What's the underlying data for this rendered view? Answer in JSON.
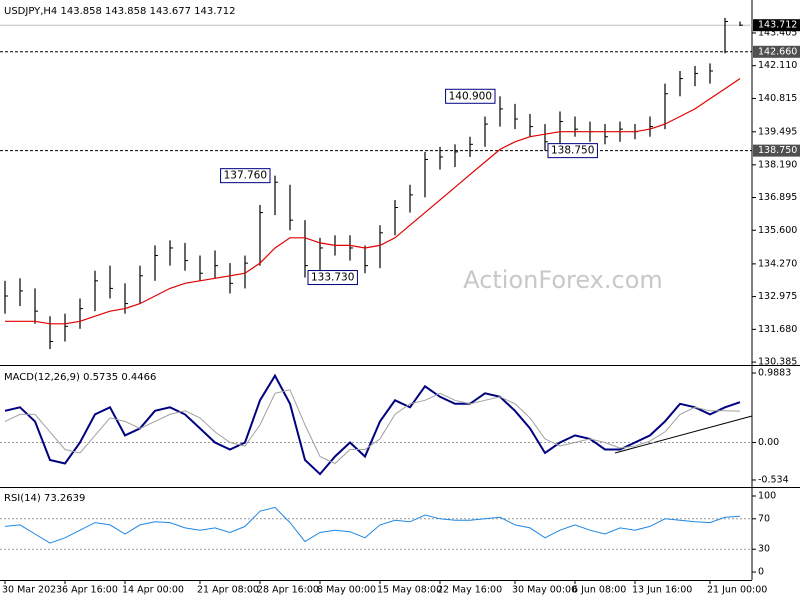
{
  "chart_data": [
    {
      "type": "ohlc",
      "title": "USDJPY,H4",
      "header_values": [
        143.858,
        143.858,
        143.677,
        143.712
      ],
      "watermark": "ActionForex.com",
      "categories": [
        "30 Mar 2023",
        null,
        null,
        null,
        "6 Apr 16:00",
        null,
        null,
        null,
        "14 Apr 00:00",
        null,
        null,
        null,
        null,
        "21 Apr 08:00",
        null,
        null,
        null,
        "28 Apr 16:00",
        null,
        null,
        null,
        "8 May 00:00",
        null,
        null,
        null,
        "15 May 08:00",
        null,
        null,
        null,
        "22 May 16:00",
        null,
        null,
        null,
        null,
        "30 May 00:00",
        null,
        null,
        null,
        "6 Jun 08:00",
        null,
        null,
        null,
        "13 Jun 16:00",
        null,
        null,
        null,
        null,
        "21 Jun 00:00",
        null,
        null
      ],
      "high": [
        133.6,
        133.7,
        133.3,
        132.2,
        132.3,
        132.9,
        134.0,
        134.2,
        133.5,
        134.2,
        135.0,
        135.2,
        135.1,
        134.6,
        134.8,
        134.3,
        134.6,
        136.6,
        137.76,
        137.4,
        136.0,
        135.3,
        135.4,
        135.4,
        135.0,
        135.8,
        136.8,
        137.4,
        138.7,
        138.9,
        139.0,
        139.3,
        140.1,
        140.9,
        140.6,
        140.2,
        139.8,
        140.3,
        140.1,
        139.9,
        139.8,
        139.9,
        139.8,
        140.1,
        141.4,
        141.9,
        142.1,
        142.2,
        144.0,
        143.858
      ],
      "low": [
        132.3,
        132.6,
        131.9,
        130.9,
        131.2,
        131.7,
        132.4,
        132.9,
        132.3,
        132.7,
        133.6,
        134.2,
        134.0,
        133.6,
        133.7,
        133.1,
        133.3,
        134.2,
        136.2,
        135.6,
        133.73,
        134.0,
        134.6,
        134.4,
        133.9,
        134.1,
        135.4,
        136.3,
        136.9,
        138.0,
        138.1,
        138.5,
        138.9,
        139.7,
        139.6,
        139.3,
        138.75,
        139.0,
        139.3,
        139.1,
        139.0,
        139.1,
        139.2,
        139.3,
        139.6,
        140.9,
        141.3,
        141.4,
        142.6,
        143.677
      ],
      "close": [
        133.0,
        133.2,
        132.4,
        131.2,
        131.8,
        132.5,
        133.6,
        133.3,
        132.7,
        133.8,
        134.6,
        134.9,
        134.4,
        133.9,
        134.2,
        133.5,
        134.3,
        136.3,
        137.5,
        136.0,
        134.2,
        134.9,
        135.0,
        134.9,
        134.2,
        135.5,
        136.5,
        137.0,
        138.4,
        138.5,
        138.7,
        139.0,
        139.8,
        140.4,
        140.0,
        139.7,
        139.1,
        139.9,
        139.6,
        139.5,
        139.3,
        139.6,
        139.5,
        139.7,
        141.0,
        141.6,
        141.8,
        141.9,
        143.858,
        143.712
      ],
      "color": "#000000",
      "ma": {
        "color": "#e00000",
        "values": [
          132.0,
          132.0,
          132.0,
          131.9,
          131.9,
          132.0,
          132.2,
          132.4,
          132.5,
          132.7,
          133.0,
          133.3,
          133.5,
          133.6,
          133.7,
          133.8,
          133.9,
          134.3,
          134.9,
          135.3,
          135.3,
          135.1,
          135.0,
          135.0,
          134.9,
          135.0,
          135.3,
          135.8,
          136.3,
          136.8,
          137.3,
          137.8,
          138.3,
          138.8,
          139.1,
          139.3,
          139.4,
          139.5,
          139.5,
          139.5,
          139.5,
          139.5,
          139.5,
          139.6,
          139.8,
          140.1,
          140.4,
          140.8,
          141.2,
          141.6
        ]
      },
      "levels": [
        {
          "value": 142.66,
          "label": "142.660"
        },
        {
          "value": 138.75,
          "label": "138.750"
        }
      ],
      "annotations": [
        {
          "value": 137.76,
          "label": "137.760"
        },
        {
          "value": 140.9,
          "label": "140.900"
        },
        {
          "value": 133.73,
          "label": "133.730"
        },
        {
          "value": 138.75,
          "label": "138.750"
        }
      ],
      "ylim": [
        130.27,
        144.59
      ],
      "yticks": [
        143.405,
        {
          "value": 142.11,
          "label": "142.110"
        },
        140.815,
        139.495,
        {
          "value": 138.19,
          "label": "138.190"
        },
        136.895,
        {
          "value": 135.6,
          "label": "135.600"
        },
        {
          "value": 134.27,
          "label": "134.270"
        },
        132.975,
        {
          "value": 131.68,
          "label": "131.680"
        },
        130.385
      ]
    },
    {
      "type": "line",
      "title": "MACD(12,26,9)",
      "series": [
        {
          "color": "#000080",
          "values": [
            0.45,
            0.5,
            0.3,
            -0.25,
            -0.3,
            0.0,
            0.4,
            0.5,
            0.1,
            0.2,
            0.45,
            0.5,
            0.4,
            0.2,
            0.0,
            -0.1,
            0.0,
            0.6,
            0.95,
            0.55,
            -0.25,
            -0.45,
            -0.2,
            0.0,
            -0.2,
            0.3,
            0.6,
            0.5,
            0.8,
            0.65,
            0.55,
            0.55,
            0.7,
            0.65,
            0.45,
            0.2,
            -0.15,
            0.0,
            0.1,
            0.05,
            -0.1,
            -0.1,
            0.0,
            0.1,
            0.3,
            0.55,
            0.5,
            0.4,
            0.5,
            0.5735
          ]
        },
        {
          "color": "#a0a0a0",
          "values": [
            0.3,
            0.4,
            0.4,
            0.15,
            -0.1,
            -0.15,
            0.1,
            0.35,
            0.3,
            0.2,
            0.3,
            0.4,
            0.45,
            0.35,
            0.15,
            0.0,
            -0.05,
            0.25,
            0.7,
            0.75,
            0.25,
            -0.2,
            -0.3,
            -0.1,
            -0.1,
            0.05,
            0.4,
            0.55,
            0.6,
            0.7,
            0.6,
            0.55,
            0.6,
            0.65,
            0.55,
            0.35,
            0.05,
            -0.05,
            0.0,
            0.05,
            0.0,
            -0.08,
            -0.05,
            0.02,
            0.15,
            0.4,
            0.5,
            0.45,
            0.45,
            0.4466
          ]
        }
      ],
      "levels": [
        0
      ],
      "ylim": [
        -0.634,
        1.074
      ],
      "yticks": [
        0.9883,
        {
          "value": 0,
          "label": "0.00"
        },
        -0.534
      ]
    },
    {
      "type": "line",
      "title": "RSI(14)",
      "series": [
        {
          "color": "#1e88e5",
          "values": [
            60,
            62,
            50,
            38,
            45,
            55,
            65,
            62,
            50,
            62,
            66,
            65,
            58,
            55,
            58,
            52,
            60,
            80,
            85,
            65,
            40,
            52,
            55,
            53,
            45,
            62,
            68,
            66,
            75,
            70,
            68,
            68,
            70,
            72,
            62,
            58,
            45,
            55,
            62,
            55,
            50,
            58,
            55,
            60,
            70,
            68,
            66,
            65,
            72,
            73.2639
          ]
        }
      ],
      "levels": [
        70,
        30
      ],
      "ylim": [
        -10.5,
        109.2
      ],
      "yticks": [
        100,
        70,
        30,
        0
      ]
    }
  ]
}
